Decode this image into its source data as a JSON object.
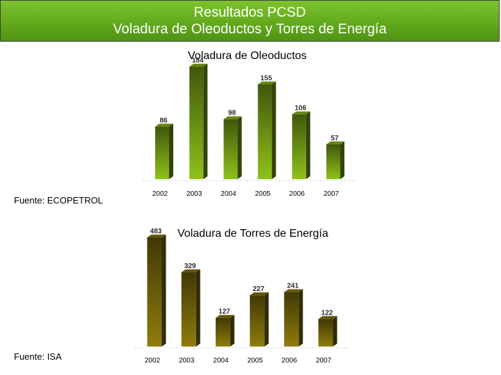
{
  "header": {
    "line1": "Resultados PCSD",
    "line2": "Voladura de Oleoductos y Torres de Energía"
  },
  "colors": {
    "header_bg": "#5fa81c",
    "oleoductos_bar": "#8fc11a",
    "torres_bar": "#8f7d0d"
  },
  "chart_data": [
    {
      "type": "bar",
      "title": "Voladura de Oleoductos",
      "source": "Fuente: ECOPETROL",
      "categories": [
        "2002",
        "2003",
        "2004",
        "2005",
        "2006",
        "2007"
      ],
      "values": [
        86,
        184,
        98,
        155,
        106,
        57
      ],
      "xlabel": "",
      "ylabel": "",
      "ylim": [
        0,
        184
      ],
      "grid": false,
      "legend": "none"
    },
    {
      "type": "bar",
      "title": "Voladura de Torres de Energía",
      "source": "Fuente: ISA",
      "categories": [
        "2002",
        "2003",
        "2004",
        "2005",
        "2006",
        "2007"
      ],
      "values": [
        483,
        329,
        127,
        227,
        241,
        122
      ],
      "xlabel": "",
      "ylabel": "",
      "ylim": [
        0,
        483
      ],
      "grid": false,
      "legend": "none"
    }
  ]
}
